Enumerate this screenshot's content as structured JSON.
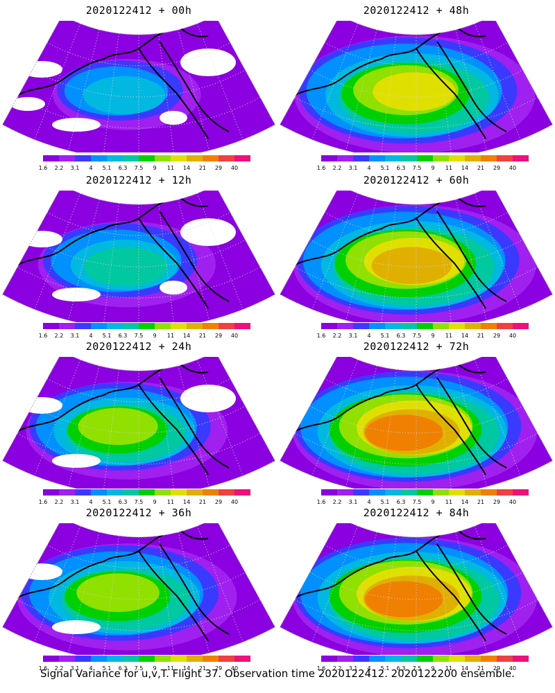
{
  "panels": [
    {
      "title": "2020122412 + 00h",
      "intensity": 0.35,
      "coverage": 0.55
    },
    {
      "title": "2020122412 + 48h",
      "intensity": 0.7,
      "coverage": 1.0
    },
    {
      "title": "2020122412 + 12h",
      "intensity": 0.45,
      "coverage": 0.7
    },
    {
      "title": "2020122412 + 60h",
      "intensity": 0.75,
      "coverage": 1.0
    },
    {
      "title": "2020122412 + 24h",
      "intensity": 0.55,
      "coverage": 0.8
    },
    {
      "title": "2020122412 + 72h",
      "intensity": 0.82,
      "coverage": 1.0
    },
    {
      "title": "2020122412 + 36h",
      "intensity": 0.62,
      "coverage": 0.9
    },
    {
      "title": "2020122412 + 84h",
      "intensity": 0.85,
      "coverage": 1.0
    }
  ],
  "legend": {
    "labels": [
      "1.6",
      "2.2",
      "3.1",
      "4",
      "5.1",
      "6.3",
      "7.5",
      "9",
      "11",
      "14",
      "21",
      "29",
      "40"
    ],
    "colors": [
      "#8a00e0",
      "#a020f0",
      "#3a3aff",
      "#0090ff",
      "#00b8e0",
      "#00c8a0",
      "#00d000",
      "#90e000",
      "#e0e000",
      "#e0b000",
      "#f08000",
      "#f04040",
      "#f0107a"
    ]
  },
  "footer": "Signal Variance for u,v,T. Flight 37. Observation time 2020122412. 2020122200 ensemble."
}
